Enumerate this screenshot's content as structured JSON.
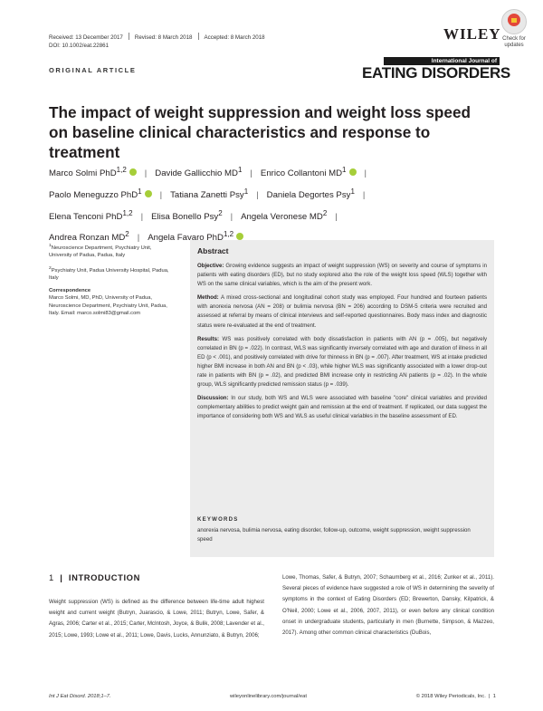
{
  "header": {
    "received": "Received: 13 December 2017",
    "revised": "Revised: 8 March 2018",
    "accepted": "Accepted: 8 March 2018",
    "doi": "DOI: 10.1002/eat.22861",
    "publisher": "WILEY",
    "badge_line1": "Check for",
    "badge_line2": "updates"
  },
  "section_label": "ORIGINAL ARTICLE",
  "journal": {
    "top": "International Journal of",
    "name": "EATING DISORDERS"
  },
  "title": "The impact of weight suppression and weight loss speed on baseline clinical characteristics and response to treatment",
  "authors": [
    {
      "name": "Marco Solmi PhD",
      "sup": "1,2",
      "orcid": true
    },
    {
      "name": "Davide Gallicchio MD",
      "sup": "1",
      "orcid": false
    },
    {
      "name": "Enrico Collantoni MD",
      "sup": "1",
      "orcid": true
    },
    {
      "name": "Paolo Meneguzzo PhD",
      "sup": "1",
      "orcid": true
    },
    {
      "name": "Tatiana Zanetti Psy",
      "sup": "1",
      "orcid": false
    },
    {
      "name": "Daniela Degortes Psy",
      "sup": "1",
      "orcid": false
    },
    {
      "name": "Elena Tenconi PhD",
      "sup": "1,2",
      "orcid": false
    },
    {
      "name": "Elisa Bonello Psy",
      "sup": "2",
      "orcid": false
    },
    {
      "name": "Angela Veronese MD",
      "sup": "2",
      "orcid": false
    },
    {
      "name": "Andrea Ronzan MD",
      "sup": "2",
      "orcid": false
    },
    {
      "name": "Angela Favaro PhD",
      "sup": "1,2",
      "orcid": true
    }
  ],
  "affiliations": [
    {
      "sup": "1",
      "text": "Neuroscience Department, Psychiatry Unit, University of Padua, Padua, Italy"
    },
    {
      "sup": "2",
      "text": "Psychiatry Unit, Padua University Hospital, Padua, Italy"
    }
  ],
  "correspondence": {
    "heading": "Correspondence",
    "text": "Marco Solmi, MD, PhD, University of Padua, Neuroscience Department, Psychiatry Unit, Padua, Italy. Email: marco.solmi83@gmail.com"
  },
  "abstract": {
    "heading": "Abstract",
    "objective_label": "Objective:",
    "objective": "Growing evidence suggests an impact of weight suppression (WS) on severity and course of symptoms in patients with eating disorders (ED), but no study explored also the role of the weight loss speed (WLS) together with WS on the same clinical variables, which is the aim of the present work.",
    "method_label": "Method:",
    "method": "A mixed cross-sectional and longitudinal cohort study was employed. Four hundred and fourteen patients with anorexia nervosa (AN = 208) or bulimia nervosa (BN = 206) according to DSM-5 criteria were recruited and assessed at referral by means of clinical interviews and self-reported questionnaires. Body mass index and diagnostic status were re-evaluated at the end of treatment.",
    "results_label": "Results:",
    "results": "WS was positively correlated with body dissatisfaction in patients with AN (p = .005), but negatively correlated in BN (p = .022). In contrast, WLS was significantly inversely correlated with age and duration of illness in all ED (p < .001), and positively correlated with drive for thinness in BN (p = .007). After treatment, WS at intake predicted higher BMI increase in both AN and BN (p < .03), while higher WLS was significantly associated with a lower drop-out rate in patients with BN (p = .02), and predicted BMI increase only in restricting AN patients (p = .02). In the whole group, WLS significantly predicted remission status (p = .039).",
    "discussion_label": "Discussion:",
    "discussion": "In our study, both WS and WLS were associated with baseline \"core\" clinical variables and provided complementary abilities to predict weight gain and remission at the end of treatment. If replicated, our data suggest the importance of considering both WS and WLS as useful clinical variables in the baseline assessment of ED.",
    "keywords_heading": "KEYWORDS",
    "keywords": "anorexia nervosa, bulimia nervosa, eating disorder, follow-up, outcome, weight suppression, weight suppression speed"
  },
  "introduction": {
    "number": "1",
    "heading": "INTRODUCTION",
    "col1": "Weight suppression (WS) is defined as the difference between life-time adult highest weight and current weight (Butryn, Juarascio, & Lowe, 2011; Butryn, Lowe, Safer, & Agras, 2006; Carter et al., 2015; Carter, McIntosh, Joyce, & Bulik, 2008; Lavender et al., 2015; Lowe, 1993; Lowe et al., 2011; Lowe, Davis, Lucks, Annunziato, & Butryn, 2006;",
    "col2": "Lowe, Thomas, Safer, & Butryn, 2007; Schaumberg et al., 2016; Zunker et al., 2011). Several pieces of evidence have suggested a role of WS in determining the severity of symptoms in the context of Eating Disorders (ED; Brewerton, Dansky, Kilpatrick, & O'Neil, 2000; Lowe et al., 2006, 2007, 2011), or even before any clinical condition onset in undergraduate students, particularly in men (Burnette, Simpson, & Mazzeo, 2017). Among other common clinical characteristics (DuBois,"
  },
  "footer": {
    "citation": "Int J Eat Disord. 2018;1–7.",
    "url": "wileyonlinelibrary.com/journal/eat",
    "copyright": "© 2018 Wiley Periodicals, Inc.",
    "page": "1"
  },
  "colors": {
    "orcid": "#a6ce39",
    "abstract_bg": "#ececec",
    "text": "#231f20"
  }
}
